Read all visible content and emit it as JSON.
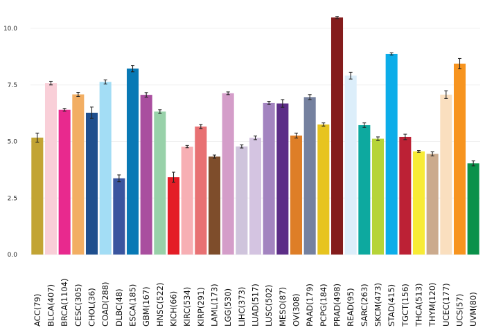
{
  "chart_data": {
    "type": "bar",
    "title": "",
    "xlabel": "",
    "ylabel": "",
    "ylim": [
      0,
      11.0
    ],
    "yticks": [
      0.0,
      2.5,
      5.0,
      7.5,
      10.0
    ],
    "ytick_labels": [
      "0.0",
      "2.5",
      "5.0",
      "7.5",
      "10.0"
    ],
    "grid": true,
    "categories": [
      "ACC(79)",
      "BLCA(407)",
      "BRCA(1104)",
      "CESC(305)",
      "CHOL(36)",
      "COAD(288)",
      "DLBC(48)",
      "ESCA(185)",
      "GBM(167)",
      "HNSC(522)",
      "KICH(66)",
      "KIRC(534)",
      "KIRP(291)",
      "LAML(173)",
      "LGG(530)",
      "LIHC(373)",
      "LUAD(517)",
      "LUSC(502)",
      "MESO(87)",
      "OV(308)",
      "PAAD(179)",
      "PCPG(184)",
      "PRAD(498)",
      "READ(95)",
      "SARC(263)",
      "SKCM(473)",
      "STAD(415)",
      "TGCT(156)",
      "THCA(513)",
      "THYM(120)",
      "UCEC(177)",
      "UCS(57)",
      "UVM(80)"
    ],
    "values": [
      5.17,
      7.58,
      6.4,
      7.08,
      6.27,
      7.63,
      3.37,
      8.22,
      7.06,
      6.32,
      3.42,
      4.77,
      5.66,
      4.33,
      7.13,
      4.78,
      5.16,
      6.7,
      6.68,
      5.26,
      6.96,
      5.75,
      10.48,
      7.91,
      5.72,
      5.12,
      8.87,
      5.2,
      4.56,
      4.45,
      7.07,
      8.44,
      4.03
    ],
    "errors": [
      0.2,
      0.08,
      0.06,
      0.09,
      0.25,
      0.09,
      0.15,
      0.14,
      0.1,
      0.08,
      0.22,
      0.05,
      0.09,
      0.07,
      0.06,
      0.07,
      0.08,
      0.07,
      0.17,
      0.11,
      0.11,
      0.07,
      0.05,
      0.15,
      0.1,
      0.08,
      0.05,
      0.12,
      0.04,
      0.09,
      0.17,
      0.23,
      0.11
    ],
    "colors": [
      "#C2A434",
      "#F9CFD8",
      "#E8298E",
      "#F2AE63",
      "#1F4F8E",
      "#A3DDF5",
      "#3A559F",
      "#0879B5",
      "#A94E9F",
      "#98D1A9",
      "#E41D26",
      "#F7AFB4",
      "#E87173",
      "#7E4D2B",
      "#D49DC9",
      "#CFC4DC",
      "#D4C4E1",
      "#A384C0",
      "#5C2D87",
      "#DE7E27",
      "#75819F",
      "#E7C41F",
      "#841C1C",
      "#DCEEFA",
      "#0DA99F",
      "#B6D438",
      "#0CADE9",
      "#BC2135",
      "#F8EB35",
      "#CBAA8D",
      "#FADFBF",
      "#F7941F",
      "#0A914A"
    ]
  }
}
